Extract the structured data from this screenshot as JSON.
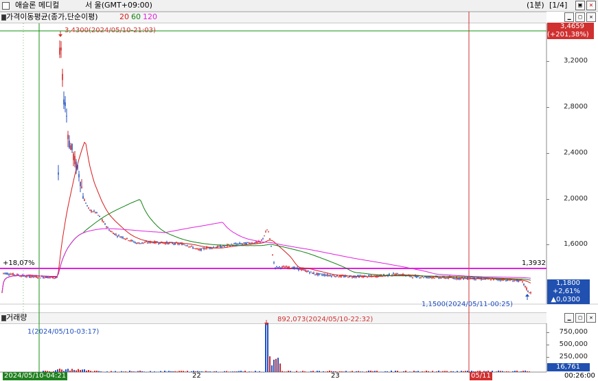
{
  "window": {
    "stock_name": "애슬론 메디컬",
    "market": "서 울(GMT+09:00)",
    "interval": "(1분)",
    "page": "[1/4]"
  },
  "price_panel": {
    "indicator_title": "가격이동평균(종가,단순이평)",
    "ma_periods": [
      {
        "label": "20",
        "color": "#d81818"
      },
      {
        "label": "60",
        "color": "#108010"
      },
      {
        "label": "120",
        "color": "#e020e0"
      }
    ],
    "y_ticks": [
      "3,2000",
      "2,8000",
      "2,4000",
      "2,0000",
      "1,6000"
    ],
    "high_tag": {
      "line1": "3,4659",
      "line2": "(+201,38%)",
      "color": "#d03030"
    },
    "current_tag": {
      "line1": "1,1800",
      "line2": "+2,61%",
      "line3": "▲0,0300",
      "color": "#2050b0"
    },
    "high_annotation": "3,4300(2024/05/10-21:03)",
    "low_annotation": "1,1500(2024/05/11-00:25)",
    "hline_left_label": "+18,07%",
    "hline_right_label": "1,3932"
  },
  "volume_panel": {
    "title": "거래량",
    "y_ticks": [
      "750,000",
      "500,000",
      "250,000"
    ],
    "current_tag": "16,761",
    "max_annotation": "892,073(2024/05/10-22:32)",
    "min_annotation": "1(2024/05/10-03:17)"
  },
  "x_axis": {
    "left_date": "2024/05/10-04:21",
    "labels": [
      "22",
      "23",
      "05/11"
    ],
    "right_time": "00:26:00"
  },
  "colors": {
    "up": "#d02020",
    "down": "#2050c0",
    "ma20": "#d81818",
    "ma60": "#108010",
    "ma120": "#e020e0",
    "hline": "#e020e0",
    "vline": "#c83030"
  }
}
